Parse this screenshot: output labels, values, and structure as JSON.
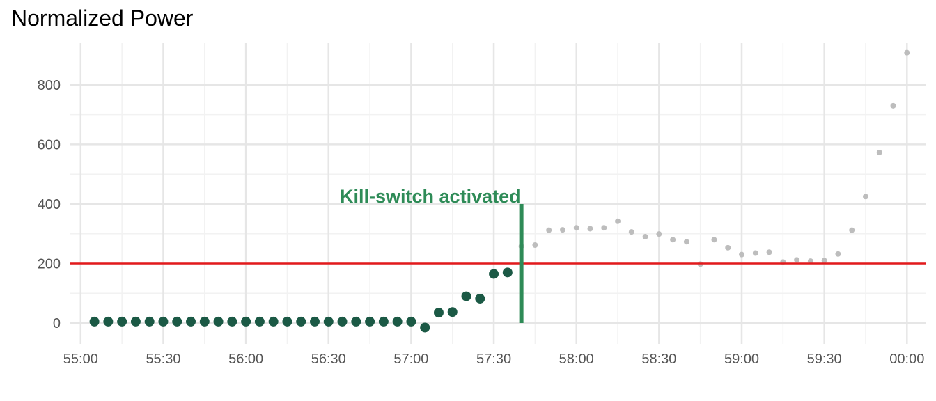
{
  "chart_data": {
    "type": "scatter",
    "title": "Normalized Power",
    "xlabel": "",
    "ylabel": "",
    "x_unit": "mm:ss",
    "xlim": [
      "54:56",
      "60:07"
    ],
    "ylim": [
      -70,
      940
    ],
    "x_ticks": [
      "55:00",
      "55:30",
      "56:00",
      "56:30",
      "57:00",
      "57:30",
      "58:00",
      "58:30",
      "59:00",
      "59:30",
      "00:00"
    ],
    "y_ticks": [
      0,
      200,
      400,
      600,
      800
    ],
    "grid": true,
    "threshold": {
      "y": 200,
      "color": "#e31a1c"
    },
    "kill_switch": {
      "x": "57:40",
      "y_from": 0,
      "y_to": 400,
      "label": "Kill-switch activated",
      "color": "#2e8b57"
    },
    "series": [
      {
        "color": "#1b5945",
        "points": [
          [
            "55:05",
            5
          ],
          [
            "55:10",
            5
          ],
          [
            "55:15",
            5
          ],
          [
            "55:20",
            5
          ],
          [
            "55:25",
            5
          ],
          [
            "55:30",
            5
          ],
          [
            "55:35",
            5
          ],
          [
            "55:40",
            5
          ],
          [
            "55:45",
            5
          ],
          [
            "55:50",
            5
          ],
          [
            "55:55",
            5
          ],
          [
            "56:00",
            5
          ],
          [
            "56:05",
            5
          ],
          [
            "56:10",
            5
          ],
          [
            "56:15",
            5
          ],
          [
            "56:20",
            5
          ],
          [
            "56:25",
            5
          ],
          [
            "56:30",
            5
          ],
          [
            "56:35",
            5
          ],
          [
            "56:40",
            5
          ],
          [
            "56:45",
            5
          ],
          [
            "56:50",
            5
          ],
          [
            "56:55",
            5
          ],
          [
            "57:00",
            5
          ],
          [
            "57:05",
            -15
          ],
          [
            "57:10",
            35
          ],
          [
            "57:15",
            37
          ],
          [
            "57:20",
            90
          ],
          [
            "57:25",
            82
          ],
          [
            "57:30",
            165
          ],
          [
            "57:35",
            170
          ]
        ]
      },
      {
        "color": "#bdbdbd",
        "points": [
          [
            "57:40",
            258
          ],
          [
            "57:45",
            262
          ],
          [
            "57:50",
            312
          ],
          [
            "57:55",
            313
          ],
          [
            "58:00",
            320
          ],
          [
            "58:05",
            317
          ],
          [
            "58:10",
            320
          ],
          [
            "58:15",
            342
          ],
          [
            "58:20",
            306
          ],
          [
            "58:25",
            290
          ],
          [
            "58:30",
            299
          ],
          [
            "58:35",
            280
          ],
          [
            "58:40",
            273
          ],
          [
            "58:45",
            198
          ],
          [
            "58:50",
            280
          ],
          [
            "58:55",
            253
          ],
          [
            "59:00",
            230
          ],
          [
            "59:05",
            235
          ],
          [
            "59:10",
            238
          ],
          [
            "59:15",
            205
          ],
          [
            "59:20",
            212
          ],
          [
            "59:25",
            208
          ],
          [
            "59:30",
            210
          ],
          [
            "59:35",
            232
          ],
          [
            "59:40",
            312
          ],
          [
            "59:45",
            425
          ],
          [
            "59:50",
            573
          ],
          [
            "59:55",
            730
          ],
          [
            "00:00",
            908
          ]
        ]
      }
    ]
  }
}
